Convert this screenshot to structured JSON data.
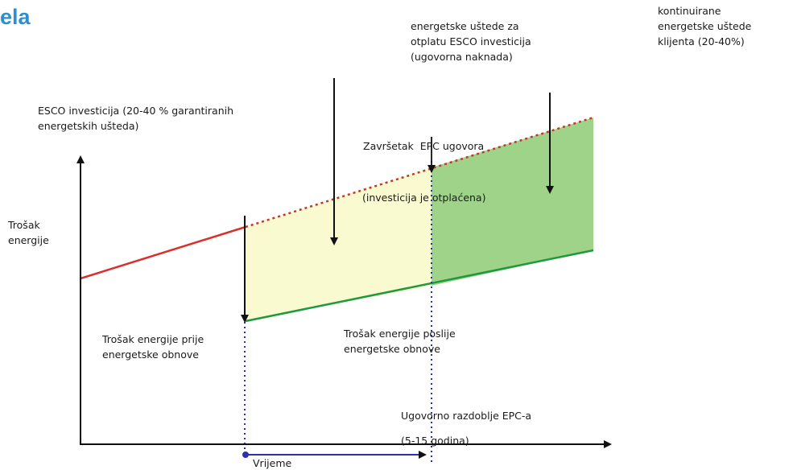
{
  "title_fragment": "ela",
  "labels": {
    "savings_repayment": "energetske uštede za\notplatu ESCO investicija\n(ugovorna naknada)",
    "continuous_savings": "kontinuirane\nenergetske uštede\nklijenta (20-40%)",
    "esco_investment": "ESCO investicija (20-40 % garantiranih\nenergetskih ušteda)",
    "contract_end": "Završetak  EPC ugovora",
    "investment_repaid": "(investicija je otplaćena)",
    "y_axis": "Trošak\nenergije",
    "cost_before": "Trošak energije prije\nenergetske obnove",
    "cost_after": "Trošak energije poslije\nenergetske obnove",
    "contract_period": "Ugovorno razdoblje EPC-a",
    "contract_years": "(5-15 godina)",
    "x_axis": "Vrijeme"
  },
  "colors": {
    "red_line": "#d9302c",
    "dotted_line": "#c0392b",
    "green_line": "#1e9a3c",
    "yellow_fill": "#fafad0",
    "green_fill": "#9fd38a",
    "blue_dotted": "#2b2fb0",
    "blue_timeline": "#2b2fb0",
    "title": "#2d8fd0"
  }
}
